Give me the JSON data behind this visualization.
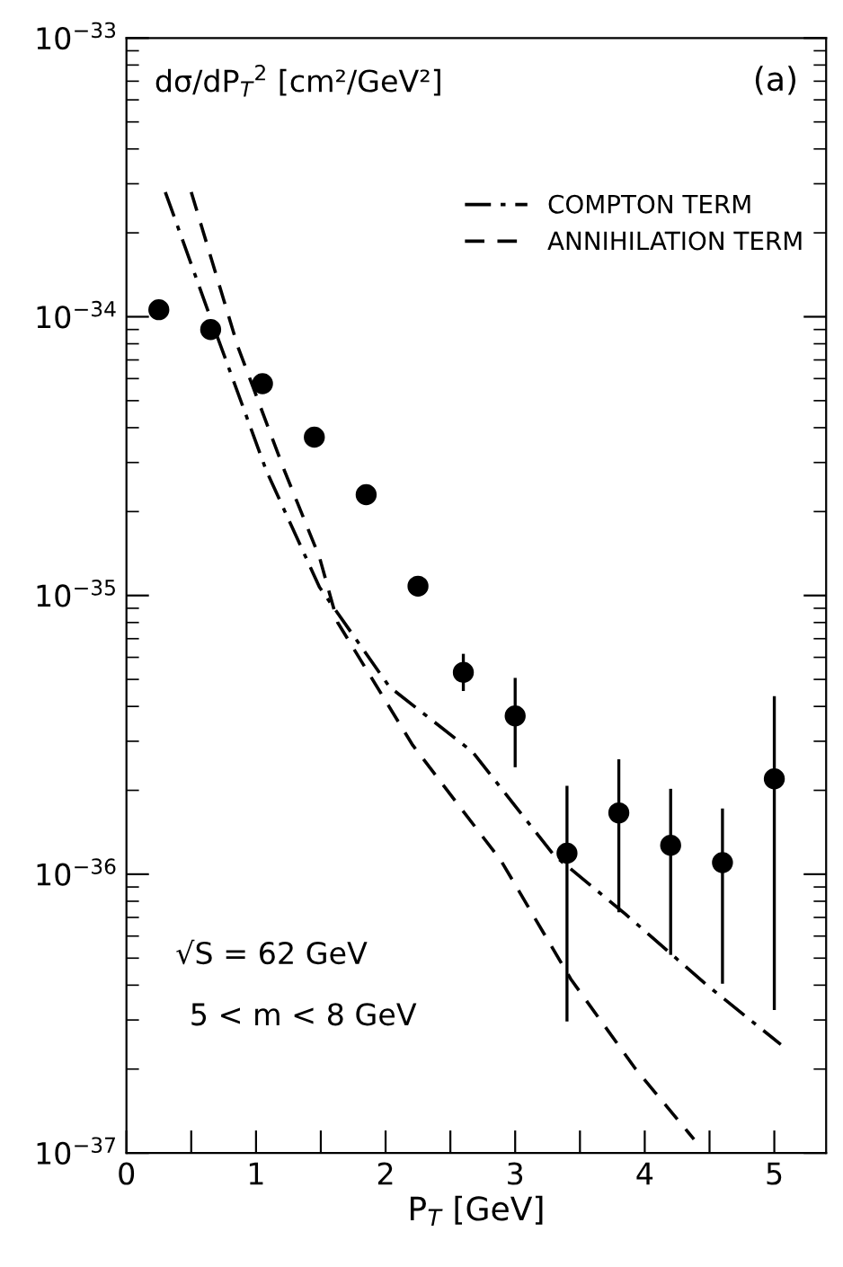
{
  "chart_data": {
    "type": "scatter",
    "xlabel": "P$_{T}$ [GeV]",
    "ylabel": "dσ/dP$_{T}$$^{2}$ [cm²/GeV²]",
    "log": "y",
    "grid": false,
    "legend": "top right",
    "marker": "circle",
    "xlim": [
      0,
      5.4
    ],
    "ylim": [
      1e-37,
      1e-33
    ],
    "xticks": [
      0,
      {
        "value": 0.5,
        "label": null
      },
      1,
      {
        "value": 1.5,
        "label": null
      },
      2,
      {
        "value": 2.5,
        "label": null
      },
      3,
      {
        "value": 3.5,
        "label": null
      },
      4,
      {
        "value": 4.5,
        "label": null
      },
      5
    ],
    "yticks": [
      {
        "value": 1e-37,
        "label": "10$^{−37}$"
      },
      {
        "value": 1e-36,
        "label": "10$^{−36}$"
      },
      {
        "value": 1e-35,
        "label": "10$^{−35}$"
      },
      {
        "value": 1e-34,
        "label": "10$^{−34}$"
      },
      {
        "value": 1e-33,
        "label": "10$^{−33}$"
      }
    ],
    "series": [
      {
        "color": "#000000",
        "x": [
          0.25,
          0.65,
          1.05,
          1.45,
          1.85,
          2.25,
          2.6,
          3.0,
          3.4,
          3.8,
          4.2,
          4.6,
          5.0
        ],
        "values": [
          1.06e-34,
          9e-35,
          5.75e-35,
          3.7e-35,
          2.3e-35,
          1.08e-35,
          5.3e-36,
          3.7e-36,
          1.19e-36,
          1.66e-36,
          1.27e-36,
          1.1e-36,
          2.2e-36
        ],
        "errors": [
          null,
          null,
          null,
          null,
          null,
          null,
          [
            4.6e-36,
            6.1e-36
          ],
          [
            2.45e-36,
            5e-36
          ],
          [
            3e-37,
            2.05e-36
          ],
          [
            7.4e-37,
            2.55e-36
          ],
          [
            5.2e-37,
            2e-36
          ],
          [
            4.1e-37,
            1.7e-36
          ],
          [
            3.3e-37,
            4.3e-36
          ]
        ]
      },
      {
        "type": "line",
        "name": "COMPTON TERM",
        "color": "#000000",
        "line_style": "dashdot",
        "marker": "none",
        "x": [
          0.3,
          0.67,
          1.08,
          1.49,
          2.03,
          2.67,
          3.3,
          3.85,
          4.48,
          5.05
        ],
        "values": [
          2.8e-34,
          9.3e-35,
          2.8e-35,
          1.07e-35,
          4.7e-36,
          2.75e-36,
          1.17e-36,
          7.2e-37,
          4e-37,
          2.45e-37
        ]
      },
      {
        "type": "line",
        "name": "ANNIHILATION TERM",
        "color": "#000000",
        "line_style": "dashed",
        "marker": "none",
        "x": [
          0.5,
          0.86,
          1.22,
          1.49,
          1.63,
          2.21,
          2.89,
          3.43,
          3.93,
          4.38
        ],
        "values": [
          2.8e-34,
          7.8e-35,
          2.8e-35,
          1.37e-35,
          8e-36,
          2.9e-36,
          1.12e-36,
          4.2e-37,
          2e-37,
          1.12e-37
        ]
      }
    ],
    "annotations": [
      "(a)",
      "√S = 62 GeV",
      "5 < m < 8 GeV"
    ]
  }
}
